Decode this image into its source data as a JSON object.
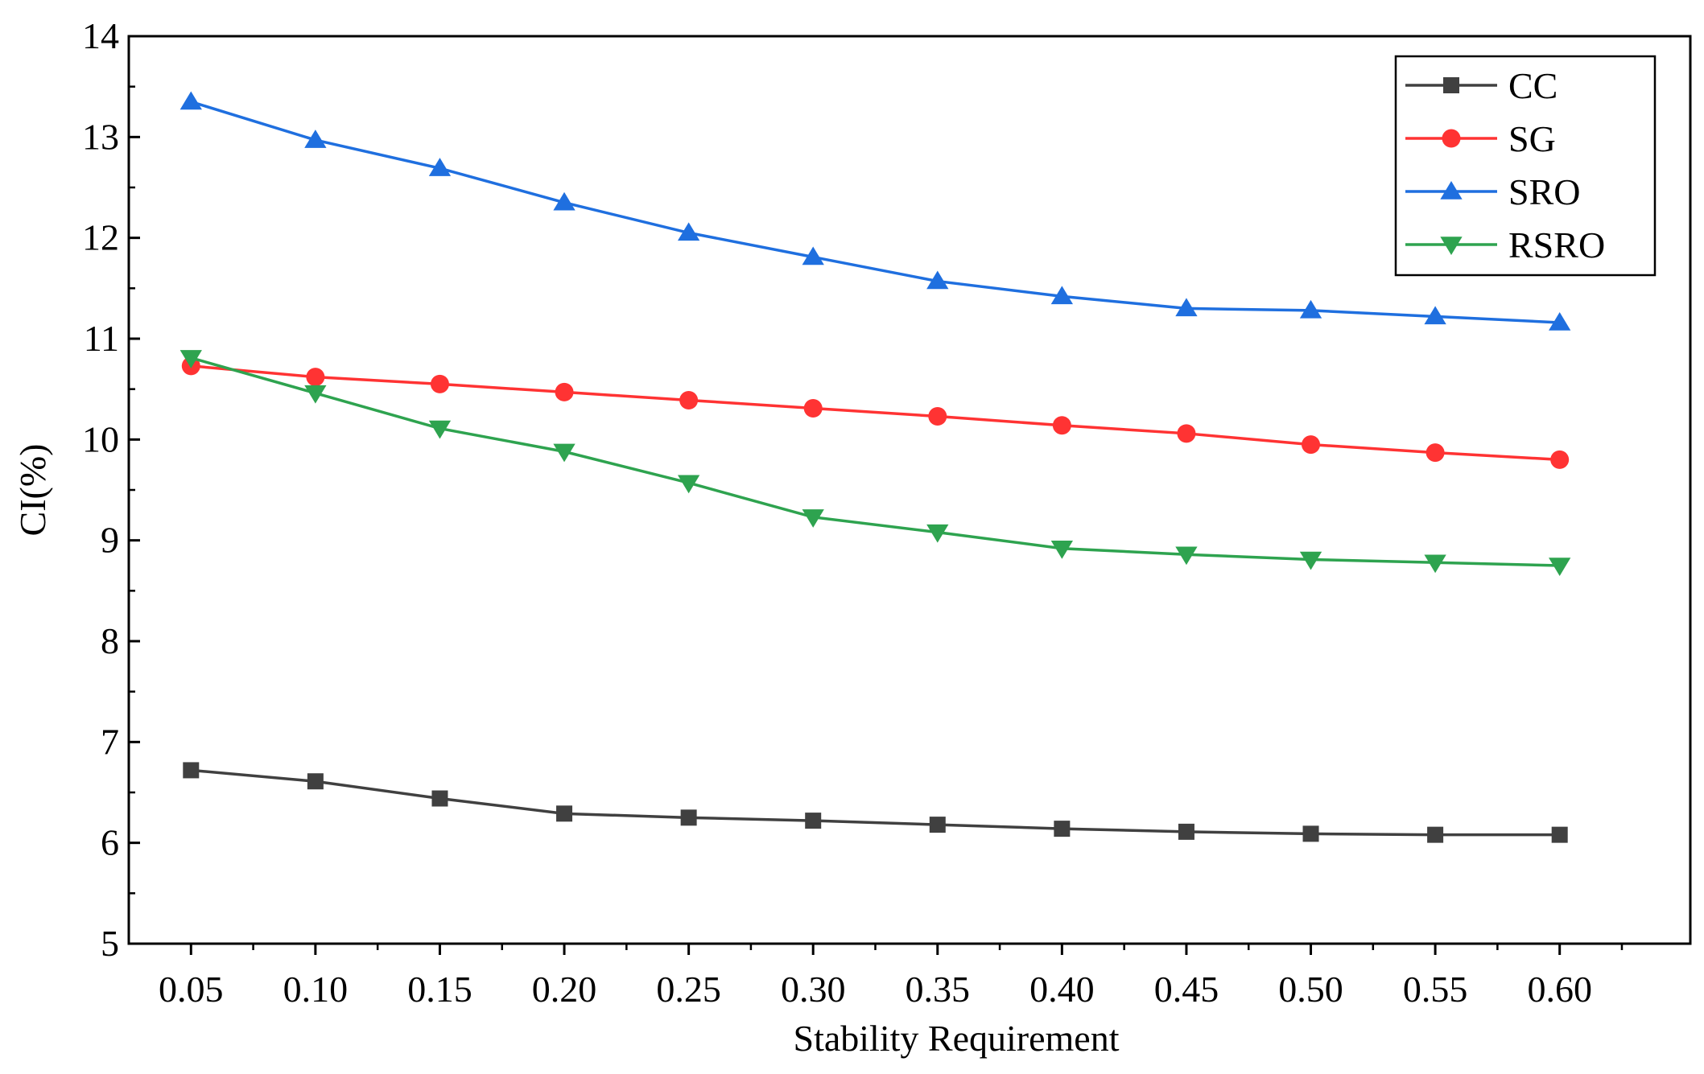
{
  "chart_data": {
    "type": "line",
    "title": "",
    "xlabel": "Stability Requirement",
    "ylabel": "CI(%)",
    "x": [
      0.05,
      0.1,
      0.15,
      0.2,
      0.25,
      0.3,
      0.35,
      0.4,
      0.45,
      0.5,
      0.55,
      0.6
    ],
    "x_tick_labels": [
      "0.05",
      "0.10",
      "0.15",
      "0.20",
      "0.25",
      "0.30",
      "0.35",
      "0.40",
      "0.45",
      "0.50",
      "0.55",
      "0.60"
    ],
    "xlim": [
      0.025,
      0.6525
    ],
    "ylim": [
      5,
      14
    ],
    "y_ticks": [
      5,
      6,
      7,
      8,
      9,
      10,
      11,
      12,
      13,
      14
    ],
    "y_tick_labels": [
      "5",
      "6",
      "7",
      "8",
      "9",
      "10",
      "11",
      "12",
      "13",
      "14"
    ],
    "grid": false,
    "legend_position": "top-right",
    "series": [
      {
        "name": "CC",
        "color": "#404040",
        "marker": "square",
        "values": [
          6.72,
          6.61,
          6.44,
          6.29,
          6.25,
          6.22,
          6.18,
          6.14,
          6.11,
          6.09,
          6.08,
          6.08
        ]
      },
      {
        "name": "SG",
        "color": "#ff3333",
        "marker": "circle",
        "values": [
          10.73,
          10.62,
          10.55,
          10.47,
          10.39,
          10.31,
          10.23,
          10.14,
          10.06,
          9.95,
          9.87,
          9.8
        ]
      },
      {
        "name": "SRO",
        "color": "#1f6fdf",
        "marker": "triangle-up",
        "values": [
          13.35,
          12.97,
          12.69,
          12.35,
          12.05,
          11.81,
          11.57,
          11.42,
          11.3,
          11.28,
          11.22,
          11.16
        ]
      },
      {
        "name": "RSRO",
        "color": "#2ea34f",
        "marker": "triangle-down",
        "values": [
          10.81,
          10.46,
          10.11,
          9.88,
          9.57,
          9.23,
          9.08,
          8.92,
          8.86,
          8.81,
          8.78,
          8.75
        ]
      }
    ]
  }
}
